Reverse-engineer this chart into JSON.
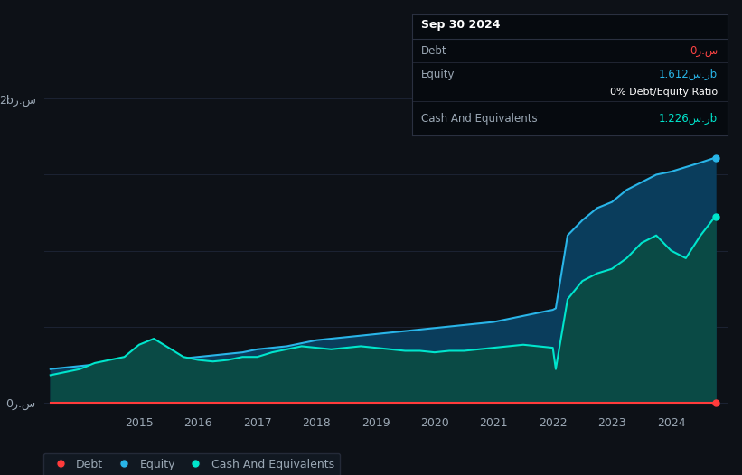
{
  "background_color": "#0d1117",
  "plot_bg_color": "#0d1117",
  "x_years": [
    2013.5,
    2014.0,
    2014.25,
    2014.5,
    2014.75,
    2015.0,
    2015.25,
    2015.5,
    2015.75,
    2016.0,
    2016.25,
    2016.5,
    2016.75,
    2017.0,
    2017.25,
    2017.5,
    2017.75,
    2018.0,
    2018.25,
    2018.5,
    2018.75,
    2019.0,
    2019.25,
    2019.5,
    2019.75,
    2020.0,
    2020.25,
    2020.5,
    2020.75,
    2021.0,
    2021.25,
    2021.5,
    2021.75,
    2022.0,
    2022.05,
    2022.25,
    2022.5,
    2022.75,
    2023.0,
    2023.25,
    2023.5,
    2023.75,
    2024.0,
    2024.25,
    2024.5,
    2024.75
  ],
  "equity": [
    0.22,
    0.24,
    0.25,
    0.26,
    0.27,
    0.27,
    0.28,
    0.28,
    0.29,
    0.3,
    0.31,
    0.32,
    0.33,
    0.35,
    0.36,
    0.37,
    0.39,
    0.41,
    0.42,
    0.43,
    0.44,
    0.45,
    0.46,
    0.47,
    0.48,
    0.49,
    0.5,
    0.51,
    0.52,
    0.53,
    0.55,
    0.57,
    0.59,
    0.61,
    0.62,
    1.1,
    1.2,
    1.28,
    1.32,
    1.4,
    1.45,
    1.5,
    1.52,
    1.55,
    1.58,
    1.612
  ],
  "cash": [
    0.18,
    0.22,
    0.26,
    0.28,
    0.3,
    0.38,
    0.42,
    0.36,
    0.3,
    0.28,
    0.27,
    0.28,
    0.3,
    0.3,
    0.33,
    0.35,
    0.37,
    0.36,
    0.35,
    0.36,
    0.37,
    0.36,
    0.35,
    0.34,
    0.34,
    0.33,
    0.34,
    0.34,
    0.35,
    0.36,
    0.37,
    0.38,
    0.37,
    0.36,
    0.22,
    0.68,
    0.8,
    0.85,
    0.88,
    0.95,
    1.05,
    1.1,
    1.0,
    0.95,
    1.1,
    1.226
  ],
  "debt": [
    0.0,
    0.0,
    0.0,
    0.0,
    0.0,
    0.0,
    0.0,
    0.0,
    0.0,
    0.0,
    0.0,
    0.0,
    0.0,
    0.0,
    0.0,
    0.0,
    0.0,
    0.0,
    0.0,
    0.0,
    0.0,
    0.0,
    0.0,
    0.0,
    0.0,
    0.0,
    0.0,
    0.0,
    0.0,
    0.0,
    0.0,
    0.0,
    0.0,
    0.0,
    0.0,
    0.0,
    0.0,
    0.0,
    0.0,
    0.0,
    0.0,
    0.0,
    0.0,
    0.0,
    0.0,
    0.0
  ],
  "equity_fill_color": "#0a3d5c",
  "equity_fill_color2": "#0d4f6e",
  "equity_line_color": "#29b5e8",
  "cash_fill_color": "#0a4a45",
  "cash_line_color": "#00e5cc",
  "debt_line_color": "#ff3b3b",
  "grid_color": "#1c2333",
  "text_color": "#9ba8b5",
  "tooltip_bg": "#060a0f",
  "tooltip_border": "#2a3040",
  "ytick_labels": [
    "0ر.س",
    "2bر.س"
  ],
  "ytick_values": [
    0.0,
    2.0
  ],
  "xtick_years": [
    2015,
    2016,
    2017,
    2018,
    2019,
    2020,
    2021,
    2022,
    2023,
    2024
  ],
  "legend_bg": "#131a24",
  "legend_border": "#2a3040",
  "dot_color_equity": "#29b5e8",
  "dot_color_cash": "#00e5cc",
  "dot_color_debt": "#ff3b3b",
  "tooltip": {
    "date": "Sep 30 2024",
    "debt_label": "Debt",
    "debt_value": "0ر.س",
    "debt_color": "#ff4444",
    "equity_label": "Equity",
    "equity_value": "1.612س.رb",
    "equity_color": "#29b5e8",
    "ratio_label": "0% Debt/Equity Ratio",
    "ratio_color": "#ffffff",
    "cash_label": "Cash And Equivalents",
    "cash_value": "1.226س.رb",
    "cash_color": "#00e5cc"
  }
}
